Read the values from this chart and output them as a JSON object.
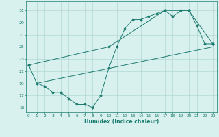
{
  "line1_x": [
    0,
    1,
    2,
    3,
    4,
    5,
    6,
    7,
    8,
    9,
    10,
    11,
    12,
    13,
    14,
    15,
    16,
    17,
    18,
    19,
    20,
    21,
    22,
    23
  ],
  "line1_y": [
    22,
    19,
    18.5,
    17.5,
    17.5,
    16.5,
    15.5,
    15.5,
    15,
    17,
    21.5,
    25,
    28,
    29.5,
    29.5,
    30,
    30.5,
    31,
    30,
    31,
    31,
    28.5,
    25.5,
    25.5
  ],
  "line2_x": [
    0,
    10,
    17,
    20,
    23
  ],
  "line2_y": [
    22,
    25,
    31,
    31,
    25.5
  ],
  "line3_x": [
    1,
    23
  ],
  "line3_y": [
    19,
    25
  ],
  "line_color": "#1a7a6e",
  "bg_color": "#d8f0ee",
  "grid_color": "#b0d8d4",
  "xlabel": "Humidex (Indice chaleur)",
  "yticks": [
    15,
    17,
    19,
    21,
    23,
    25,
    27,
    29,
    31
  ],
  "xtick_labels": [
    "0",
    "1",
    "2",
    "3",
    "4",
    "5",
    "6",
    "7",
    "8",
    "9",
    "10",
    "11",
    "12",
    "13",
    "14",
    "15",
    "16",
    "17",
    "18",
    "19",
    "20",
    "21",
    "22",
    "23"
  ],
  "xticks": [
    0,
    1,
    2,
    3,
    4,
    5,
    6,
    7,
    8,
    9,
    10,
    11,
    12,
    13,
    14,
    15,
    16,
    17,
    18,
    19,
    20,
    21,
    22,
    23
  ],
  "xlim": [
    -0.3,
    23.5
  ],
  "ylim": [
    14.2,
    32.5
  ]
}
